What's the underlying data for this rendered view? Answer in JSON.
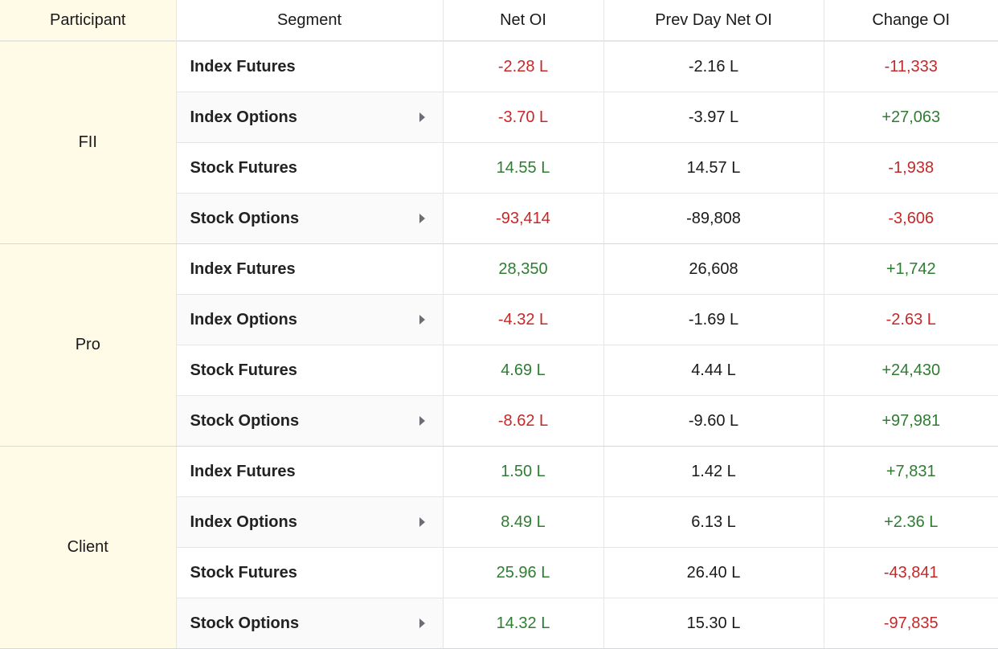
{
  "headers": {
    "participant": "Participant",
    "segment": "Segment",
    "net_oi": "Net OI",
    "prev_day_net_oi": "Prev Day Net OI",
    "change_oi": "Change OI"
  },
  "colors": {
    "negative": "#c62828",
    "positive": "#2e7d32",
    "participant_bg": "#fffbe6"
  },
  "groups": [
    {
      "participant": "FII",
      "rows": [
        {
          "segment": "Index Futures",
          "net_oi": "-2.28 L",
          "prev_day_net_oi": "-2.16 L",
          "change_oi": "-11,333",
          "expandable": false
        },
        {
          "segment": "Index Options",
          "net_oi": "-3.70 L",
          "prev_day_net_oi": "-3.97 L",
          "change_oi": "+27,063",
          "expandable": true
        },
        {
          "segment": "Stock Futures",
          "net_oi": "14.55 L",
          "prev_day_net_oi": "14.57 L",
          "change_oi": "-1,938",
          "expandable": false
        },
        {
          "segment": "Stock Options",
          "net_oi": "-93,414",
          "prev_day_net_oi": "-89,808",
          "change_oi": "-3,606",
          "expandable": true
        }
      ]
    },
    {
      "participant": "Pro",
      "rows": [
        {
          "segment": "Index Futures",
          "net_oi": "28,350",
          "prev_day_net_oi": "26,608",
          "change_oi": "+1,742",
          "expandable": false
        },
        {
          "segment": "Index Options",
          "net_oi": "-4.32 L",
          "prev_day_net_oi": "-1.69 L",
          "change_oi": "-2.63 L",
          "expandable": true
        },
        {
          "segment": "Stock Futures",
          "net_oi": "4.69 L",
          "prev_day_net_oi": "4.44 L",
          "change_oi": "+24,430",
          "expandable": false
        },
        {
          "segment": "Stock Options",
          "net_oi": "-8.62 L",
          "prev_day_net_oi": "-9.60 L",
          "change_oi": "+97,981",
          "expandable": true
        }
      ]
    },
    {
      "participant": "Client",
      "rows": [
        {
          "segment": "Index Futures",
          "net_oi": "1.50 L",
          "prev_day_net_oi": "1.42 L",
          "change_oi": "+7,831",
          "expandable": false
        },
        {
          "segment": "Index Options",
          "net_oi": "8.49 L",
          "prev_day_net_oi": "6.13 L",
          "change_oi": "+2.36 L",
          "expandable": true
        },
        {
          "segment": "Stock Futures",
          "net_oi": "25.96 L",
          "prev_day_net_oi": "26.40 L",
          "change_oi": "-43,841",
          "expandable": false
        },
        {
          "segment": "Stock Options",
          "net_oi": "14.32 L",
          "prev_day_net_oi": "15.30 L",
          "change_oi": "-97,835",
          "expandable": true
        }
      ]
    }
  ]
}
